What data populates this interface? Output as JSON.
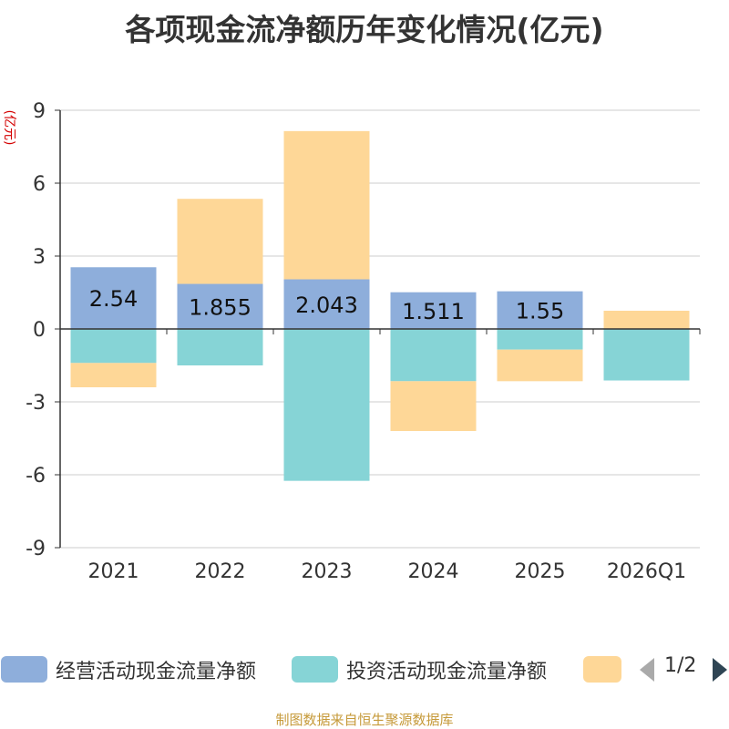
{
  "title": "各项现金流净额历年变化情况(亿元)",
  "unit_label": "(亿元)",
  "source_text": "制图数据来自恒生聚源数据库",
  "colors": {
    "operating": "#8eaedb",
    "investing": "#86d4d6",
    "financing": "#fed797"
  },
  "legend": {
    "items": [
      {
        "name": "经营活动现金流量净额",
        "color": "#8eaedb"
      },
      {
        "name": "投资活动现金流量净额",
        "color": "#86d4d6"
      },
      {
        "name": "",
        "color": "#fed797"
      }
    ],
    "pager_text": "1/2"
  },
  "chart_data": {
    "type": "bar",
    "stacked": true,
    "title": "各项现金流净额历年变化情况(亿元)",
    "ylabel": "(亿元)",
    "categories": [
      "2021",
      "2022",
      "2023",
      "2024",
      "2025",
      "2026Q1"
    ],
    "ylim": [
      -9,
      9
    ],
    "yticks": [
      9,
      6,
      3,
      0,
      -3,
      -6,
      -9
    ],
    "grid": true,
    "legend_position": "bottom",
    "series": [
      {
        "name": "经营活动现金流量净额",
        "color": "#8eaedb",
        "values": [
          2.54,
          1.855,
          2.043,
          1.511,
          1.55,
          -0.02
        ],
        "labels": [
          "2.54",
          "1.855",
          "2.043",
          "1.511",
          "1.55",
          ""
        ]
      },
      {
        "name": "投资活动现金流量净额",
        "color": "#86d4d6",
        "values": [
          -1.4,
          -1.5,
          -6.25,
          -2.15,
          -0.85,
          -2.1
        ]
      },
      {
        "name": "",
        "color": "#fed797",
        "values": [
          -1.0,
          3.5,
          6.1,
          -2.05,
          -1.3,
          0.75
        ]
      }
    ]
  }
}
